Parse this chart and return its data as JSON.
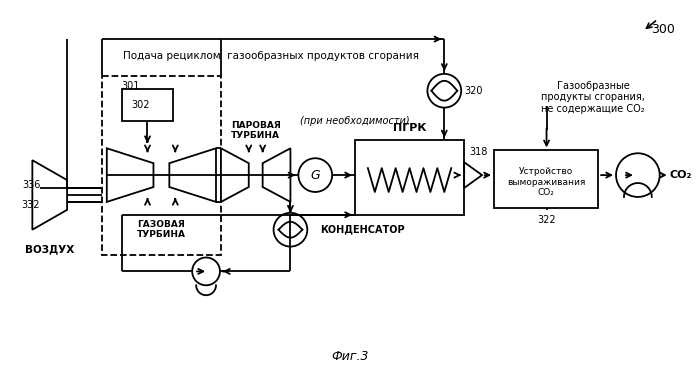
{
  "title": "Фиг.3",
  "fig_label": "300",
  "background": "#ffffff",
  "recycle_label": "Подача рециклом  газообразных продуктов сгорания",
  "label_320": "320",
  "label_301": "301",
  "label_302": "302",
  "label_336": "336",
  "label_332": "332",
  "label_318": "318",
  "label_322": "322",
  "label_vozduh": "ВОЗДУХ",
  "label_gazovaya": "ГАЗОВАЯ\nТУРБИНА",
  "label_parovaya": "ПАРОВАЯ\nТУРБИНА",
  "label_pgrk": "ПГРК",
  "label_kondensator": "КОНДЕНСАТОР",
  "label_ustroistvo": "Устройство\nвымораживания\nСО₂",
  "label_co2": "СО₂",
  "label_gazoobraznye": "Газообразные\nпродукты сгорания,\nне содержащие СО₂",
  "label_pri_neobh": "(при необходимости)"
}
